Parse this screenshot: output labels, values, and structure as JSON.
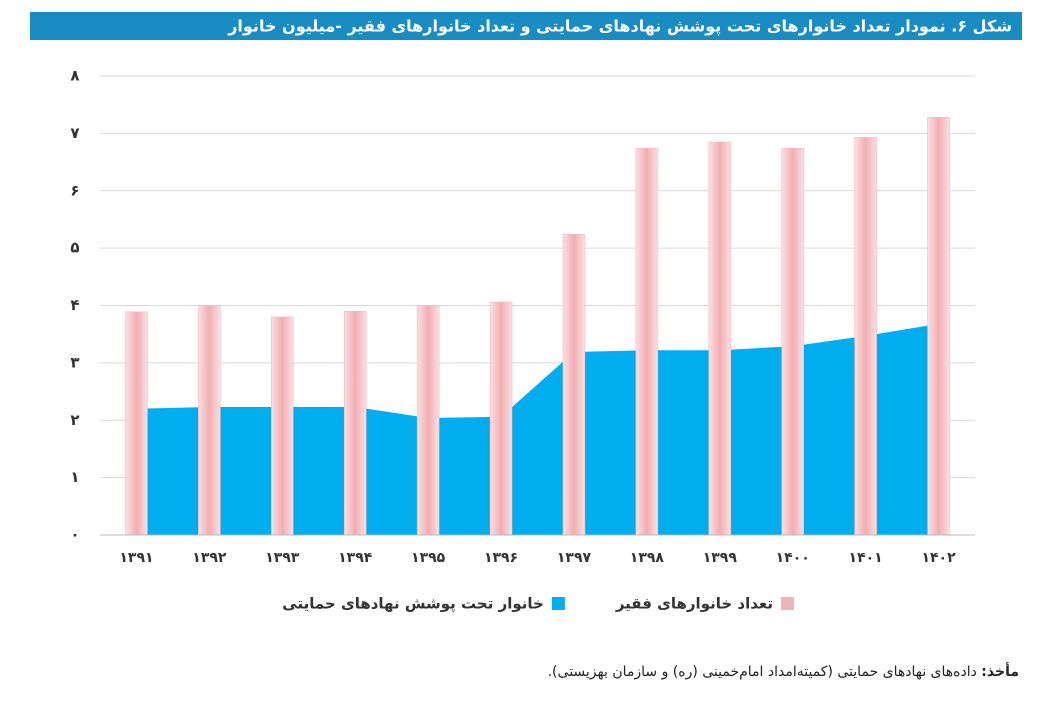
{
  "chart_data": {
    "type": "bar",
    "title": "شکل ۶. نمودار تعداد خانوارهای تحت پوشش نهادهای حمایتی و تعداد خانوارهای فقیر -میلیون خانوار",
    "categories": [
      "۱۳۹۱",
      "۱۳۹۲",
      "۱۳۹۳",
      "۱۳۹۴",
      "۱۳۹۵",
      "۱۳۹۶",
      "۱۳۹۷",
      "۱۳۹۸",
      "۱۳۹۹",
      "۱۴۰۰",
      "۱۴۰۱",
      "۱۴۰۲"
    ],
    "series": [
      {
        "name": "تعداد خانوارهای فقیر",
        "type": "bar",
        "color": "#f2b3b7",
        "values": [
          3.89,
          4.0,
          3.8,
          3.9,
          4.0,
          4.06,
          5.24,
          6.74,
          6.85,
          6.74,
          6.93,
          7.28
        ]
      },
      {
        "name": "خانوار تحت پوشش نهادهای حمایتی",
        "type": "area",
        "color": "#00aeef",
        "values": [
          2.2,
          2.23,
          2.23,
          2.23,
          2.04,
          2.06,
          3.19,
          3.22,
          3.22,
          3.29,
          3.47,
          3.68
        ]
      }
    ],
    "ylim": [
      0,
      8
    ],
    "yticks": [
      {
        "value": 0,
        "label": "۰"
      },
      {
        "value": 1,
        "label": "۱"
      },
      {
        "value": 2,
        "label": "۲"
      },
      {
        "value": 3,
        "label": "۳"
      },
      {
        "value": 4,
        "label": "۴"
      },
      {
        "value": 5,
        "label": "۵"
      },
      {
        "value": 6,
        "label": "۶"
      },
      {
        "value": 7,
        "label": "۷"
      },
      {
        "value": 8,
        "label": "۸"
      }
    ],
    "grid": true
  },
  "source": {
    "label": "مأخذ:",
    "text": " داده‌های نهادهای حمایتی (کمیته‌امداد امام‌خمینی (ره) و سازمان بهزیستی)."
  }
}
